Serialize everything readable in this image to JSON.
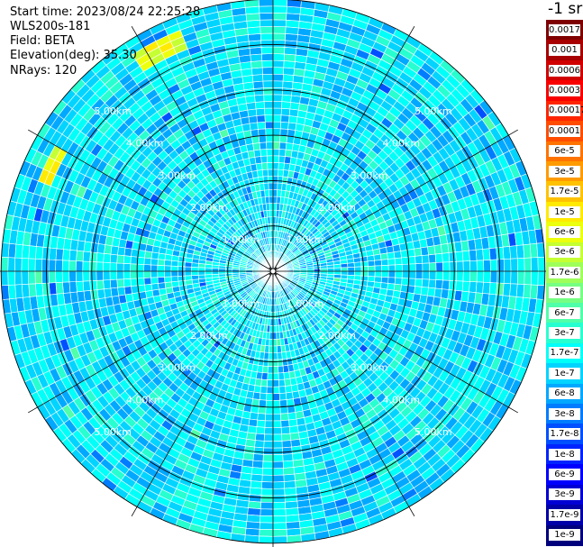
{
  "info": {
    "start_time": "Start time: 2023/08/24 22:25:28",
    "instrument": "WLS200s-181",
    "field": "Field: BETA",
    "elevation": "Elevation(deg): 35.30",
    "nrays": "NRays: 120"
  },
  "colorbar": {
    "unit": "-1 sr",
    "labels": [
      "0.0017",
      "0.001",
      "0.0006",
      "0.0003",
      "0.00017",
      "0.0001",
      "6e-5",
      "3e-5",
      "1.7e-5",
      "1e-5",
      "6e-6",
      "3e-6",
      "1.7e-6",
      "1e-6",
      "6e-7",
      "3e-7",
      "1.7e-7",
      "1e-7",
      "6e-8",
      "3e-8",
      "1.7e-8",
      "1e-8",
      "6e-9",
      "3e-9",
      "1.7e-9",
      "1e-9"
    ],
    "colors": [
      "#7f0000",
      "#a80000",
      "#d10000",
      "#f90000",
      "#ff2400",
      "#ff4c00",
      "#ff7300",
      "#ff9b00",
      "#ffc200",
      "#ffea00",
      "#ecff0d",
      "#c5ff33",
      "#9eff5a",
      "#76ff82",
      "#4fffa9",
      "#27ffd0",
      "#00fff8",
      "#00d4ff",
      "#00a8ff",
      "#007cff",
      "#0050ff",
      "#0024ff",
      "#0000ff",
      "#0000d4",
      "#0000a8",
      "#00007c"
    ]
  },
  "chart_data": {
    "type": "heatmap",
    "subtype": "ppi-polar",
    "field": "BETA",
    "rings_km": [
      1,
      2,
      3,
      4,
      5
    ],
    "max_range_km": 6.0,
    "range_labels": [
      "1.00km",
      "2.00km",
      "3.00km",
      "4.00km",
      "5.00km"
    ],
    "n_rays": 120,
    "value_scale": "log",
    "value_range": [
      1e-09,
      0.0017
    ],
    "typical_value_range": [
      6e-08,
      3e-07
    ],
    "features": [
      {
        "description": "strong return arc",
        "azimuth_deg_range": [
          290,
          300
        ],
        "range_km": [
          5.2,
          5.6
        ],
        "peak_value": 1e-05
      },
      {
        "description": "strong return arc",
        "azimuth_deg_range": [
          326,
          338
        ],
        "range_km": [
          5.3,
          5.7
        ],
        "peak_value": 1e-05
      }
    ]
  }
}
